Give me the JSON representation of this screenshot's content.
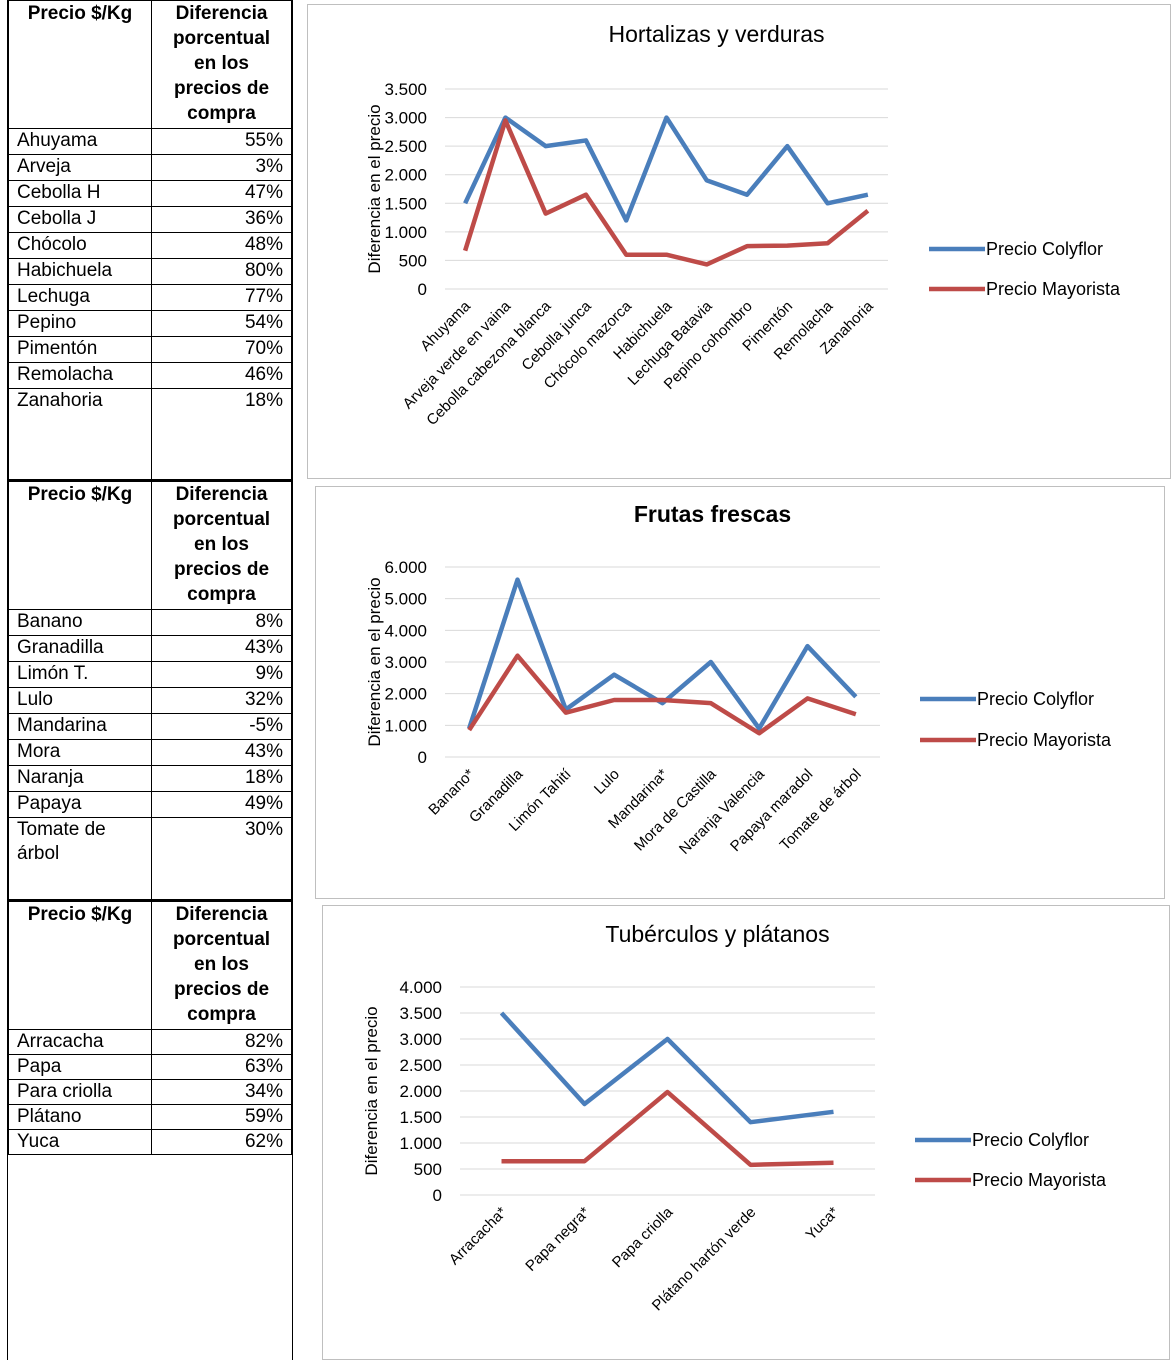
{
  "tables": [
    {
      "header": [
        "Precio $/Kg",
        "Diferencia porcentual en los precios de compra"
      ],
      "rows": [
        [
          "Ahuyama",
          "55%"
        ],
        [
          "Arveja",
          "3%"
        ],
        [
          "Cebolla H",
          "47%"
        ],
        [
          "Cebolla J",
          "36%"
        ],
        [
          "Chócolo",
          "48%"
        ],
        [
          "Habichuela",
          "80%"
        ],
        [
          "Lechuga",
          "77%"
        ],
        [
          "Pepino",
          "54%"
        ],
        [
          "Pimentón",
          "70%"
        ],
        [
          "Remolacha",
          "46%"
        ],
        [
          "Zanahoria",
          "18%"
        ]
      ]
    },
    {
      "header": [
        "Precio $/Kg",
        "Diferencia porcentual en los precios de compra"
      ],
      "rows": [
        [
          "Banano",
          "8%"
        ],
        [
          "Granadilla",
          "43%"
        ],
        [
          "Limón T.",
          "9%"
        ],
        [
          "Lulo",
          "32%"
        ],
        [
          "Mandarina",
          "-5%"
        ],
        [
          "Mora",
          "43%"
        ],
        [
          "Naranja",
          "18%"
        ],
        [
          "Papaya",
          "49%"
        ],
        [
          "Tomate de árbol",
          "30%"
        ]
      ]
    },
    {
      "header": [
        "Precio $/Kg",
        "Diferencia porcentual en los precios de compra"
      ],
      "rows": [
        [
          "Arracacha",
          "82%"
        ],
        [
          "Papa",
          "63%"
        ],
        [
          "Para criolla",
          "34%"
        ],
        [
          "Plátano",
          "59%"
        ],
        [
          "Yuca",
          "62%"
        ]
      ]
    }
  ],
  "chart_data": [
    {
      "type": "line",
      "title": "Hortalizas y verduras",
      "y_label": "Diferencia en el precio",
      "categories": [
        "Ahuyama",
        "Arveja verde en vaina",
        "Cebolla cabezona blanca",
        "Cebolla junca",
        "Chócolo mazorca",
        "Habichuela",
        "Lechuga Batavia",
        "Pepino cohombro",
        "Pimentón",
        "Remolacha",
        "Zanahoria"
      ],
      "series": [
        {
          "name": "Precio Colyflor",
          "color": "#4a7ebb",
          "values": [
            1500,
            3000,
            2500,
            2600,
            1200,
            3000,
            1900,
            1650,
            2500,
            1500,
            1650
          ]
        },
        {
          "name": "Precio Mayorista",
          "color": "#be4b48",
          "values": [
            670,
            2950,
            1320,
            1650,
            600,
            600,
            430,
            750,
            760,
            800,
            1370
          ]
        }
      ],
      "ylim": [
        0,
        3500
      ],
      "yticks": [
        0,
        500,
        {
          "value": 1000,
          "label": "1.000"
        },
        {
          "value": 1500,
          "label": "1.500"
        },
        {
          "value": 2000,
          "label": "2.000"
        },
        {
          "value": 2500,
          "label": "2.500"
        },
        {
          "value": 3000,
          "label": "3.000"
        },
        {
          "value": 3500,
          "label": "3.500"
        }
      ],
      "grid": true,
      "legend": "right"
    },
    {
      "type": "line",
      "title": "Frutas frescas",
      "y_label": "Diferencia en el precio",
      "categories": [
        "Banano*",
        "Granadilla",
        "Limón Tahití",
        "Lulo",
        "Mandarina*",
        "Mora de Castilla",
        "Naranja Valencia",
        "Papaya maradol",
        "Tomate de árbol"
      ],
      "series": [
        {
          "name": "Precio Colyflor",
          "color": "#4a7ebb",
          "values": [
            900,
            5600,
            1500,
            2600,
            1700,
            3000,
            900,
            3500,
            1900
          ]
        },
        {
          "name": "Precio Mayorista",
          "color": "#be4b48",
          "values": [
            850,
            3200,
            1400,
            1800,
            1800,
            1700,
            750,
            1850,
            1350
          ]
        }
      ],
      "ylim": [
        0,
        6000
      ],
      "yticks": [
        0,
        {
          "value": 1000,
          "label": "1.000"
        },
        {
          "value": 2000,
          "label": "2.000"
        },
        {
          "value": 3000,
          "label": "3.000"
        },
        {
          "value": 4000,
          "label": "4.000"
        },
        {
          "value": 5000,
          "label": "5.000"
        },
        {
          "value": 6000,
          "label": "6.000"
        }
      ],
      "grid": true,
      "legend": "right"
    },
    {
      "type": "line",
      "title": "Tubérculos y plátanos",
      "y_label": "Diferencia en el precio",
      "categories": [
        "Arracacha*",
        "Papa negra*",
        "Papa criolla",
        "Plátano hartón verde",
        "Yuca*"
      ],
      "series": [
        {
          "name": "Precio Colyflor",
          "color": "#4a7ebb",
          "values": [
            3500,
            1750,
            3000,
            1400,
            1600
          ]
        },
        {
          "name": "Precio Mayorista",
          "color": "#be4b48",
          "values": [
            650,
            650,
            1980,
            580,
            620
          ]
        }
      ],
      "ylim": [
        0,
        4000
      ],
      "yticks": [
        0,
        500,
        {
          "value": 1000,
          "label": "1.000"
        },
        {
          "value": 1500,
          "label": "1.500"
        },
        {
          "value": 2000,
          "label": "2.000"
        },
        {
          "value": 2500,
          "label": "2.500"
        },
        {
          "value": 3000,
          "label": "3.000"
        },
        {
          "value": 3500,
          "label": "3.500"
        },
        {
          "value": 4000,
          "label": "4.000"
        }
      ],
      "grid": true,
      "legend": "right"
    }
  ]
}
